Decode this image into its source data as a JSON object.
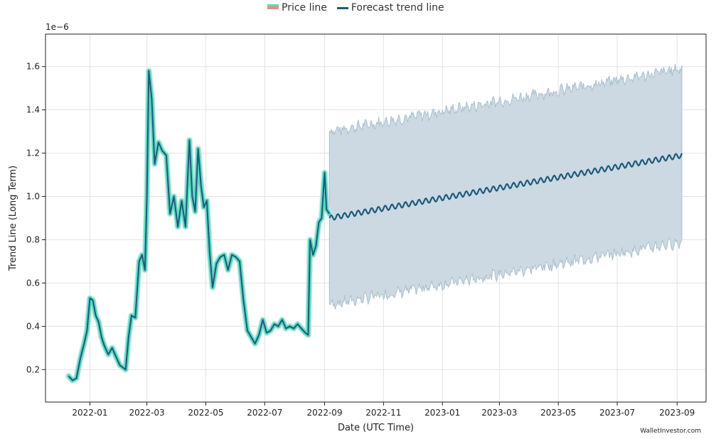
{
  "legend": {
    "price_label": "Price line",
    "forecast_label": "Forecast trend line"
  },
  "watermark": "WalletInvestor.com",
  "chart_data": {
    "type": "line",
    "title": "",
    "xlabel": "Date (UTC Time)",
    "ylabel": "Trend Line (Long Term)",
    "y_scale_label": "1e−6",
    "xlim": [
      "2021-11-16",
      "2023-10-01"
    ],
    "ylim": [
      0.05,
      1.75
    ],
    "y_ticks": [
      0.2,
      0.4,
      0.6,
      0.8,
      1.0,
      1.2,
      1.4,
      1.6
    ],
    "y_tick_labels": [
      "0.2",
      "0.4",
      "0.6",
      "0.8",
      "1.0",
      "1.2",
      "1.4",
      "1.6"
    ],
    "x_ticks": [
      "2022-01-01",
      "2022-03-01",
      "2022-05-01",
      "2022-07-01",
      "2022-09-01",
      "2022-11-01",
      "2023-01-01",
      "2023-03-01",
      "2023-05-01",
      "2023-07-01",
      "2023-09-01"
    ],
    "x_tick_labels": [
      "2022-01",
      "2022-03",
      "2022-05",
      "2022-07",
      "2022-09",
      "2022-11",
      "2023-01",
      "2023-03",
      "2023-05",
      "2023-07",
      "2023-09"
    ],
    "grid": true,
    "legend_position": "top-center",
    "colors": {
      "price": "#5dd8bf",
      "price_legend": "#f08c78",
      "forecast": "#1c5a7c",
      "band": "#ccd9e2",
      "band_edge": "#a9bfcc"
    },
    "series": [
      {
        "name": "Price line",
        "points": [
          [
            "2021-12-10",
            0.17
          ],
          [
            "2021-12-14",
            0.15
          ],
          [
            "2021-12-18",
            0.16
          ],
          [
            "2021-12-22",
            0.25
          ],
          [
            "2021-12-26",
            0.32
          ],
          [
            "2021-12-29",
            0.38
          ],
          [
            "2022-01-01",
            0.53
          ],
          [
            "2022-01-04",
            0.52
          ],
          [
            "2022-01-07",
            0.45
          ],
          [
            "2022-01-10",
            0.42
          ],
          [
            "2022-01-13",
            0.35
          ],
          [
            "2022-01-16",
            0.31
          ],
          [
            "2022-01-20",
            0.27
          ],
          [
            "2022-01-24",
            0.3
          ],
          [
            "2022-01-28",
            0.26
          ],
          [
            "2022-02-01",
            0.22
          ],
          [
            "2022-02-04",
            0.21
          ],
          [
            "2022-02-07",
            0.2
          ],
          [
            "2022-02-10",
            0.35
          ],
          [
            "2022-02-13",
            0.45
          ],
          [
            "2022-02-17",
            0.44
          ],
          [
            "2022-02-21",
            0.7
          ],
          [
            "2022-02-24",
            0.73
          ],
          [
            "2022-02-27",
            0.66
          ],
          [
            "2022-03-01",
            1.0
          ],
          [
            "2022-03-03",
            1.58
          ],
          [
            "2022-03-06",
            1.45
          ],
          [
            "2022-03-09",
            1.15
          ],
          [
            "2022-03-13",
            1.25
          ],
          [
            "2022-03-17",
            1.21
          ],
          [
            "2022-03-21",
            1.19
          ],
          [
            "2022-03-25",
            0.92
          ],
          [
            "2022-03-29",
            1.0
          ],
          [
            "2022-04-02",
            0.86
          ],
          [
            "2022-04-06",
            0.98
          ],
          [
            "2022-04-10",
            0.86
          ],
          [
            "2022-04-14",
            1.26
          ],
          [
            "2022-04-17",
            1.0
          ],
          [
            "2022-04-20",
            0.93
          ],
          [
            "2022-04-23",
            1.22
          ],
          [
            "2022-04-26",
            1.05
          ],
          [
            "2022-04-29",
            0.95
          ],
          [
            "2022-05-02",
            0.98
          ],
          [
            "2022-05-05",
            0.74
          ],
          [
            "2022-05-08",
            0.58
          ],
          [
            "2022-05-12",
            0.69
          ],
          [
            "2022-05-16",
            0.72
          ],
          [
            "2022-05-20",
            0.73
          ],
          [
            "2022-05-24",
            0.66
          ],
          [
            "2022-05-28",
            0.73
          ],
          [
            "2022-06-01",
            0.72
          ],
          [
            "2022-06-05",
            0.7
          ],
          [
            "2022-06-09",
            0.52
          ],
          [
            "2022-06-13",
            0.38
          ],
          [
            "2022-06-17",
            0.35
          ],
          [
            "2022-06-21",
            0.32
          ],
          [
            "2022-06-25",
            0.36
          ],
          [
            "2022-06-29",
            0.43
          ],
          [
            "2022-07-03",
            0.37
          ],
          [
            "2022-07-07",
            0.38
          ],
          [
            "2022-07-11",
            0.41
          ],
          [
            "2022-07-15",
            0.4
          ],
          [
            "2022-07-19",
            0.43
          ],
          [
            "2022-07-23",
            0.39
          ],
          [
            "2022-07-27",
            0.4
          ],
          [
            "2022-07-31",
            0.39
          ],
          [
            "2022-08-04",
            0.41
          ],
          [
            "2022-08-08",
            0.39
          ],
          [
            "2022-08-12",
            0.37
          ],
          [
            "2022-08-15",
            0.36
          ],
          [
            "2022-08-17",
            0.8
          ],
          [
            "2022-08-20",
            0.73
          ],
          [
            "2022-08-23",
            0.77
          ],
          [
            "2022-08-26",
            0.88
          ],
          [
            "2022-08-29",
            0.9
          ],
          [
            "2022-09-01",
            1.11
          ],
          [
            "2022-09-03",
            0.94
          ],
          [
            "2022-09-06",
            0.92
          ]
        ]
      },
      {
        "name": "Forecast trend line",
        "start": "2022-09-06",
        "end": "2023-09-06",
        "start_value": 0.9,
        "end_value": 1.19,
        "weekly_wiggle": 0.012,
        "band_lower_start": 0.5,
        "band_lower_end": 0.79,
        "band_upper_start": 1.3,
        "band_upper_end": 1.59,
        "band_noise": 0.02
      }
    ]
  }
}
